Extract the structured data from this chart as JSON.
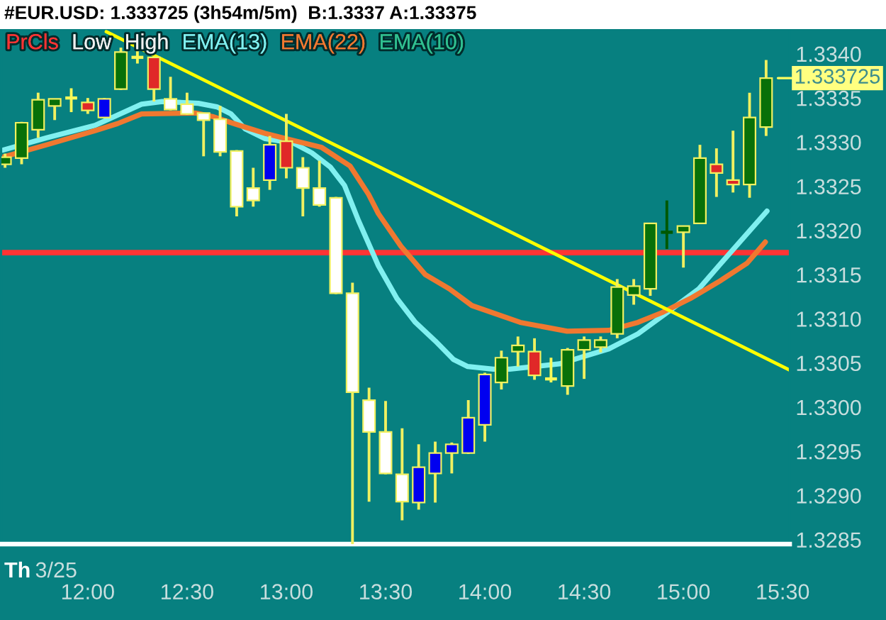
{
  "chart_data": {
    "type": "candlestick",
    "title": "#EUR.USD: 1.333725 (3h54m/5m)  B:1.3337 A:1.33375",
    "x": [
      11.5833,
      11.6667,
      11.75,
      11.8333,
      11.9167,
      12,
      12.0833,
      12.1667,
      12.25,
      12.3333,
      12.4167,
      12.5,
      12.5833,
      12.6667,
      12.75,
      12.8333,
      12.9167,
      13,
      13.0833,
      13.1667,
      13.25,
      13.3333,
      13.4167,
      13.5,
      13.5833,
      13.6667,
      13.75,
      13.8333,
      13.9167,
      14,
      14.0833,
      14.1667,
      14.25,
      14.3333,
      14.4167,
      14.5,
      14.5833,
      14.6667,
      14.75,
      14.8333,
      14.9167,
      15,
      15.0833,
      15.1667,
      15.25,
      15.3333,
      15.4167
    ],
    "ohlc": [
      [
        1.33275,
        1.33287,
        1.33271,
        1.33283
      ],
      [
        1.33282,
        1.33323,
        1.33275,
        1.33322
      ],
      [
        1.33314,
        1.33356,
        1.33305,
        1.33348
      ],
      [
        1.33341,
        1.33349,
        1.33325,
        1.33349
      ],
      [
        1.3335,
        1.33361,
        1.33334,
        1.3335
      ],
      [
        1.33345,
        1.3335,
        1.33332,
        1.33336
      ],
      [
        1.33328,
        1.3335,
        1.33327,
        1.33349
      ],
      [
        1.3336,
        1.33407,
        1.33359,
        1.33402
      ],
      [
        1.33396,
        1.33404,
        1.33389,
        1.33396
      ],
      [
        1.33396,
        1.33397,
        1.33346,
        1.3336
      ],
      [
        1.33349,
        1.33374,
        1.33336,
        1.33337
      ],
      [
        1.33343,
        1.33356,
        1.33331,
        1.33332
      ],
      [
        1.33333,
        1.33333,
        1.33284,
        1.33325
      ],
      [
        1.33326,
        1.33341,
        1.33284,
        1.33289
      ],
      [
        1.3329,
        1.33291,
        1.33216,
        1.33227
      ],
      [
        1.33248,
        1.33271,
        1.33227,
        1.33234
      ],
      [
        1.33257,
        1.33307,
        1.33246,
        1.33297
      ],
      [
        1.33301,
        1.33332,
        1.33259,
        1.33271
      ],
      [
        1.33271,
        1.33283,
        1.33216,
        1.33248
      ],
      [
        1.33248,
        1.33279,
        1.33227,
        1.33229
      ],
      [
        1.33237,
        1.33238,
        1.33128,
        1.33129
      ],
      [
        1.33129,
        1.33141,
        1.32845,
        1.33017
      ],
      [
        1.33008,
        1.33022,
        1.32893,
        1.32972
      ],
      [
        1.32972,
        1.33007,
        1.32924,
        1.32925
      ],
      [
        1.32924,
        1.32976,
        1.32872,
        1.32893
      ],
      [
        1.32892,
        1.32958,
        1.32884,
        1.32932
      ],
      [
        1.32925,
        1.32961,
        1.32892,
        1.32948
      ],
      [
        1.32948,
        1.3296,
        1.32925,
        1.32958
      ],
      [
        1.32948,
        1.33008,
        1.32947,
        1.32988
      ],
      [
        1.3298,
        1.33039,
        1.32961,
        1.33037
      ],
      [
        1.33028,
        1.33064,
        1.3302,
        1.33056
      ],
      [
        1.33063,
        1.3308,
        1.33046,
        1.3307
      ],
      [
        1.33063,
        1.33078,
        1.33031,
        1.33036
      ],
      [
        1.33032,
        1.33056,
        1.33028,
        1.33032
      ],
      [
        1.33024,
        1.33067,
        1.33014,
        1.33065
      ],
      [
        1.33065,
        1.3308,
        1.33032,
        1.33076
      ],
      [
        1.33068,
        1.3308,
        1.33062,
        1.33076
      ],
      [
        1.33083,
        1.33145,
        1.33078,
        1.33136
      ],
      [
        1.33127,
        1.33145,
        1.33116,
        1.33137
      ],
      [
        1.33134,
        1.33208,
        1.33126,
        1.33208
      ],
      [
        1.33198,
        1.33234,
        1.33179,
        1.33198
      ],
      [
        1.33198,
        1.33205,
        1.33158,
        1.33205
      ],
      [
        1.33208,
        1.33297,
        1.33208,
        1.33282
      ],
      [
        1.33275,
        1.33293,
        1.33238,
        1.33265
      ],
      [
        1.33257,
        1.33313,
        1.33243,
        1.33252
      ],
      [
        1.33252,
        1.33356,
        1.33237,
        1.33328
      ],
      [
        1.33317,
        1.33393,
        1.33307,
        1.333725
      ]
    ],
    "colors": [
      "#087008",
      "#087008",
      "#087008",
      "#087008",
      "#f8f858",
      "#e02828",
      "#0000f0",
      "#087008",
      "#f8f858",
      "#e02828",
      "#ffffff",
      "#ffffff",
      "#ffffff",
      "#ffffff",
      "#ffffff",
      "#ffffff",
      "#0000f0",
      "#e02828",
      "#ffffff",
      "#ffffff",
      "#ffffff",
      "#ffffff",
      "#ffffff",
      "#ffffff",
      "#ffffff",
      "#0000f0",
      "#0000f0",
      "#0000f0",
      "#0000f0",
      "#0000f0",
      "#087008",
      "#087008",
      "#e02828",
      "#f8f858",
      "#087008",
      "#087008",
      "#087008",
      "#087008",
      "#087008",
      "#087008",
      "#005800",
      "#087008",
      "#087008",
      "#e02828",
      "#e02828",
      "#087008",
      "#087008"
    ],
    "color": "#f0f060",
    "series": [
      {
        "type": "line",
        "name": "Low",
        "color": "#f0f0f0",
        "values": [
          null,
          null,
          null,
          null,
          null,
          null,
          null,
          null,
          null,
          null,
          null,
          null,
          null,
          null,
          null,
          null,
          null,
          null,
          null,
          null,
          null,
          null,
          null,
          null,
          null,
          null,
          null,
          null,
          null,
          null,
          null,
          null,
          null,
          null,
          null,
          null,
          null,
          null,
          null,
          null,
          null,
          null,
          null,
          null,
          null,
          null,
          null
        ]
      },
      {
        "type": "line",
        "name": "High",
        "color": "#f0f0f0",
        "values": [
          null,
          null,
          null,
          null,
          null,
          null,
          null,
          null,
          null,
          null,
          null,
          null,
          null,
          null,
          null,
          null,
          null,
          null,
          null,
          null,
          null,
          null,
          null,
          null,
          null,
          null,
          null,
          null,
          null,
          null,
          null,
          null,
          null,
          null,
          null,
          null,
          null,
          null,
          null,
          null,
          null,
          null,
          null,
          null,
          null,
          null,
          null
        ]
      },
      {
        "type": "line",
        "name": "EMA(13)",
        "color": "#80f0f0",
        "x": [
          11.572,
          11.793,
          12.036,
          12.271,
          12.375,
          12.557,
          12.65,
          12.721,
          12.793,
          12.893,
          13.035,
          13.128,
          13.221,
          13.293,
          13.364,
          13.464,
          13.557,
          13.65,
          13.75,
          13.842,
          13.914,
          14.042,
          14.125,
          14.375,
          14.625,
          14.771,
          14.935,
          15.078,
          15.221,
          15.421
        ],
        "values": [
          1.33291,
          1.33305,
          1.33319,
          1.33343,
          1.33346,
          1.33344,
          1.3334,
          1.33332,
          1.33315,
          1.33304,
          1.33299,
          1.33288,
          1.33272,
          1.33251,
          1.33211,
          1.3316,
          1.33123,
          1.33096,
          1.33075,
          1.33054,
          1.33046,
          1.33043,
          1.33043,
          1.33049,
          1.33066,
          1.33083,
          1.3311,
          1.33134,
          1.33171,
          1.33222
        ]
      },
      {
        "type": "line",
        "name": "EMA(22)",
        "color": "#f07830",
        "x": [
          11.572,
          11.793,
          12.036,
          12.15,
          12.271,
          12.542,
          12.628,
          12.75,
          12.893,
          13.035,
          13.178,
          13.321,
          13.414,
          13.464,
          13.578,
          13.7,
          13.821,
          13.935,
          14.178,
          14.414,
          14.625,
          14.771,
          14.892,
          15.035,
          15.178,
          15.321,
          15.413
        ],
        "values": [
          1.33283,
          1.33297,
          1.33313,
          1.33321,
          1.33332,
          1.33333,
          1.33329,
          1.3332,
          1.3331,
          1.33302,
          1.33294,
          1.33273,
          1.33241,
          1.33219,
          1.33182,
          1.3315,
          1.33134,
          1.33115,
          1.33096,
          1.33086,
          1.33087,
          1.33096,
          1.33107,
          1.33123,
          1.33142,
          1.33163,
          1.33187
        ]
      },
      {
        "type": "line",
        "name": "EMA(10)",
        "color": "#30c090",
        "values": [
          null,
          null,
          null,
          null,
          null,
          null,
          null,
          null,
          null,
          null,
          null,
          null,
          null,
          null,
          null,
          null,
          null,
          null,
          null,
          null,
          null,
          null,
          null,
          null,
          null,
          null,
          null,
          null,
          null,
          null,
          null,
          null,
          null,
          null,
          null,
          null,
          null,
          null,
          null,
          null,
          null,
          null,
          null,
          null,
          null,
          null,
          null
        ]
      },
      {
        "type": "line",
        "color": "#ffff00",
        "x": [
          12.093,
          15.535
        ],
        "values": [
          1.33425,
          1.33042
        ]
      }
    ],
    "ref_lines": [
      {
        "axis": "y",
        "value": 1.33175,
        "label": "PrCls",
        "color": "#ff3434"
      }
    ],
    "xlim": [
      11.565,
      15.535
    ],
    "xticks": [
      {
        "value": 12,
        "label": "12:00"
      },
      {
        "value": 12.5,
        "label": "12:30"
      },
      {
        "value": 13,
        "label": "13:00"
      },
      {
        "value": 13.5,
        "label": "13:30"
      },
      {
        "value": 14,
        "label": "14:00"
      },
      {
        "value": 14.5,
        "label": "14:30"
      },
      {
        "value": 15,
        "label": "15:00"
      },
      {
        "value": 15.5,
        "label": "15:30"
      }
    ],
    "ylim": [
      1.32845,
      1.33428
    ],
    "yticks": [
      1.3285,
      {
        "value": 1.329,
        "label": "1.3290"
      },
      1.3295,
      {
        "value": 1.33,
        "label": "1.3300"
      },
      1.3305,
      {
        "value": 1.331,
        "label": "1.3310"
      },
      1.3315,
      {
        "value": 1.332,
        "label": "1.3320"
      },
      1.3325,
      {
        "value": 1.333,
        "label": "1.3330"
      },
      1.3335,
      {
        "value": 1.334,
        "label": "1.3340"
      }
    ],
    "annotations": [
      "Th",
      "3/25",
      {
        "text": "1.333725",
        "x": 15.4167,
        "y": 1.333725
      }
    ],
    "legend": "top left"
  }
}
